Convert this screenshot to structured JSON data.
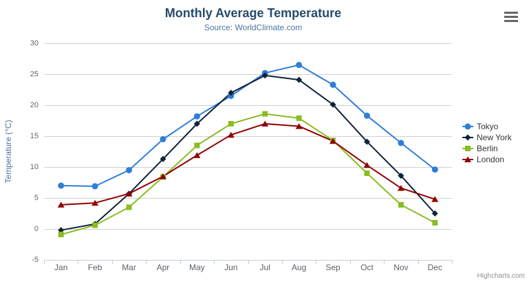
{
  "chart_data": {
    "type": "line",
    "title": "Monthly Average Temperature",
    "subtitle": "Source: WorldClimate.com",
    "xlabel": "",
    "ylabel": "Temperature (°C)",
    "categories": [
      "Jan",
      "Feb",
      "Mar",
      "Apr",
      "May",
      "Jun",
      "Jul",
      "Aug",
      "Sep",
      "Oct",
      "Nov",
      "Dec"
    ],
    "ylim": [
      -5,
      30
    ],
    "yticks": [
      -5,
      0,
      5,
      10,
      15,
      20,
      25,
      30
    ],
    "grid": true,
    "legend_position": "right",
    "series": [
      {
        "name": "Tokyo",
        "color": "#2f7ed8",
        "marker": "circle",
        "values": [
          7.0,
          6.9,
          9.5,
          14.5,
          18.2,
          21.5,
          25.2,
          26.5,
          23.3,
          18.3,
          13.9,
          9.6
        ]
      },
      {
        "name": "New York",
        "color": "#0d233a",
        "marker": "diamond",
        "values": [
          -0.2,
          0.8,
          5.7,
          11.3,
          17.0,
          22.0,
          24.8,
          24.1,
          20.1,
          14.1,
          8.6,
          2.5
        ]
      },
      {
        "name": "Berlin",
        "color": "#8bbc21",
        "marker": "square",
        "values": [
          -0.9,
          0.6,
          3.5,
          8.4,
          13.5,
          17.0,
          18.6,
          17.9,
          14.3,
          9.0,
          3.9,
          1.0
        ]
      },
      {
        "name": "London",
        "color": "#910000",
        "marker": "triangle",
        "values": [
          3.9,
          4.2,
          5.7,
          8.5,
          11.9,
          15.2,
          17.0,
          16.6,
          14.2,
          10.3,
          6.6,
          4.8
        ]
      }
    ]
  },
  "colors": {
    "background": "#ffffff",
    "title": "#274b6d",
    "subtitle": "#4d759e",
    "axis_title": "#4d759e",
    "tick_label": "#666666",
    "grid_line": "#d0d0d0",
    "axis_line": "#c0d0e0",
    "legend_text": "#333333",
    "credits": "#909090",
    "menu_icon": "#666666"
  },
  "menu": {
    "icon": "hamburger-icon"
  },
  "credits": {
    "label": "Highcharts.com"
  }
}
